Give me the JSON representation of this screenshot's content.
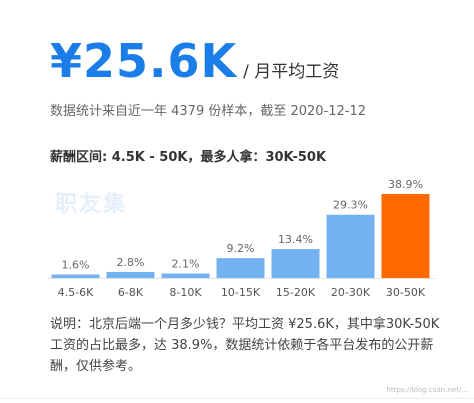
{
  "header": {
    "salary_value": "¥25.6K",
    "salary_unit": "/ 月平均工资",
    "sample_info": "数据统计来自近一年 4379 份样本，截至 2020-12-12",
    "range_info": "薪酬区间: 4.5K - 50K，最多人拿：30K-50K"
  },
  "brand_watermark": "职友集",
  "chart_data": {
    "type": "bar",
    "categories": [
      "4.5-6K",
      "6-8K",
      "8-10K",
      "10-15K",
      "15-20K",
      "20-30K",
      "30-50K"
    ],
    "values": [
      1.6,
      2.8,
      2.1,
      9.2,
      13.4,
      29.3,
      38.9
    ],
    "value_labels": [
      "1.6%",
      "2.8%",
      "2.1%",
      "9.2%",
      "13.4%",
      "29.3%",
      "38.9%"
    ],
    "unit": "%",
    "ylim": [
      0,
      38.9
    ],
    "highlight_index": 6,
    "colors": {
      "default": "#74b3f2",
      "highlight": "#ff6a00",
      "label": "#666666"
    }
  },
  "footnote": "说明：北京后端一个月多少钱？平均工资 ¥25.6K，其中拿30K-50K 工资的占比最多，达 38.9%，数据统计依赖于各平台发布的公开薪酬，仅供参考。",
  "url_watermark": "https://blog.csdn.net/..."
}
